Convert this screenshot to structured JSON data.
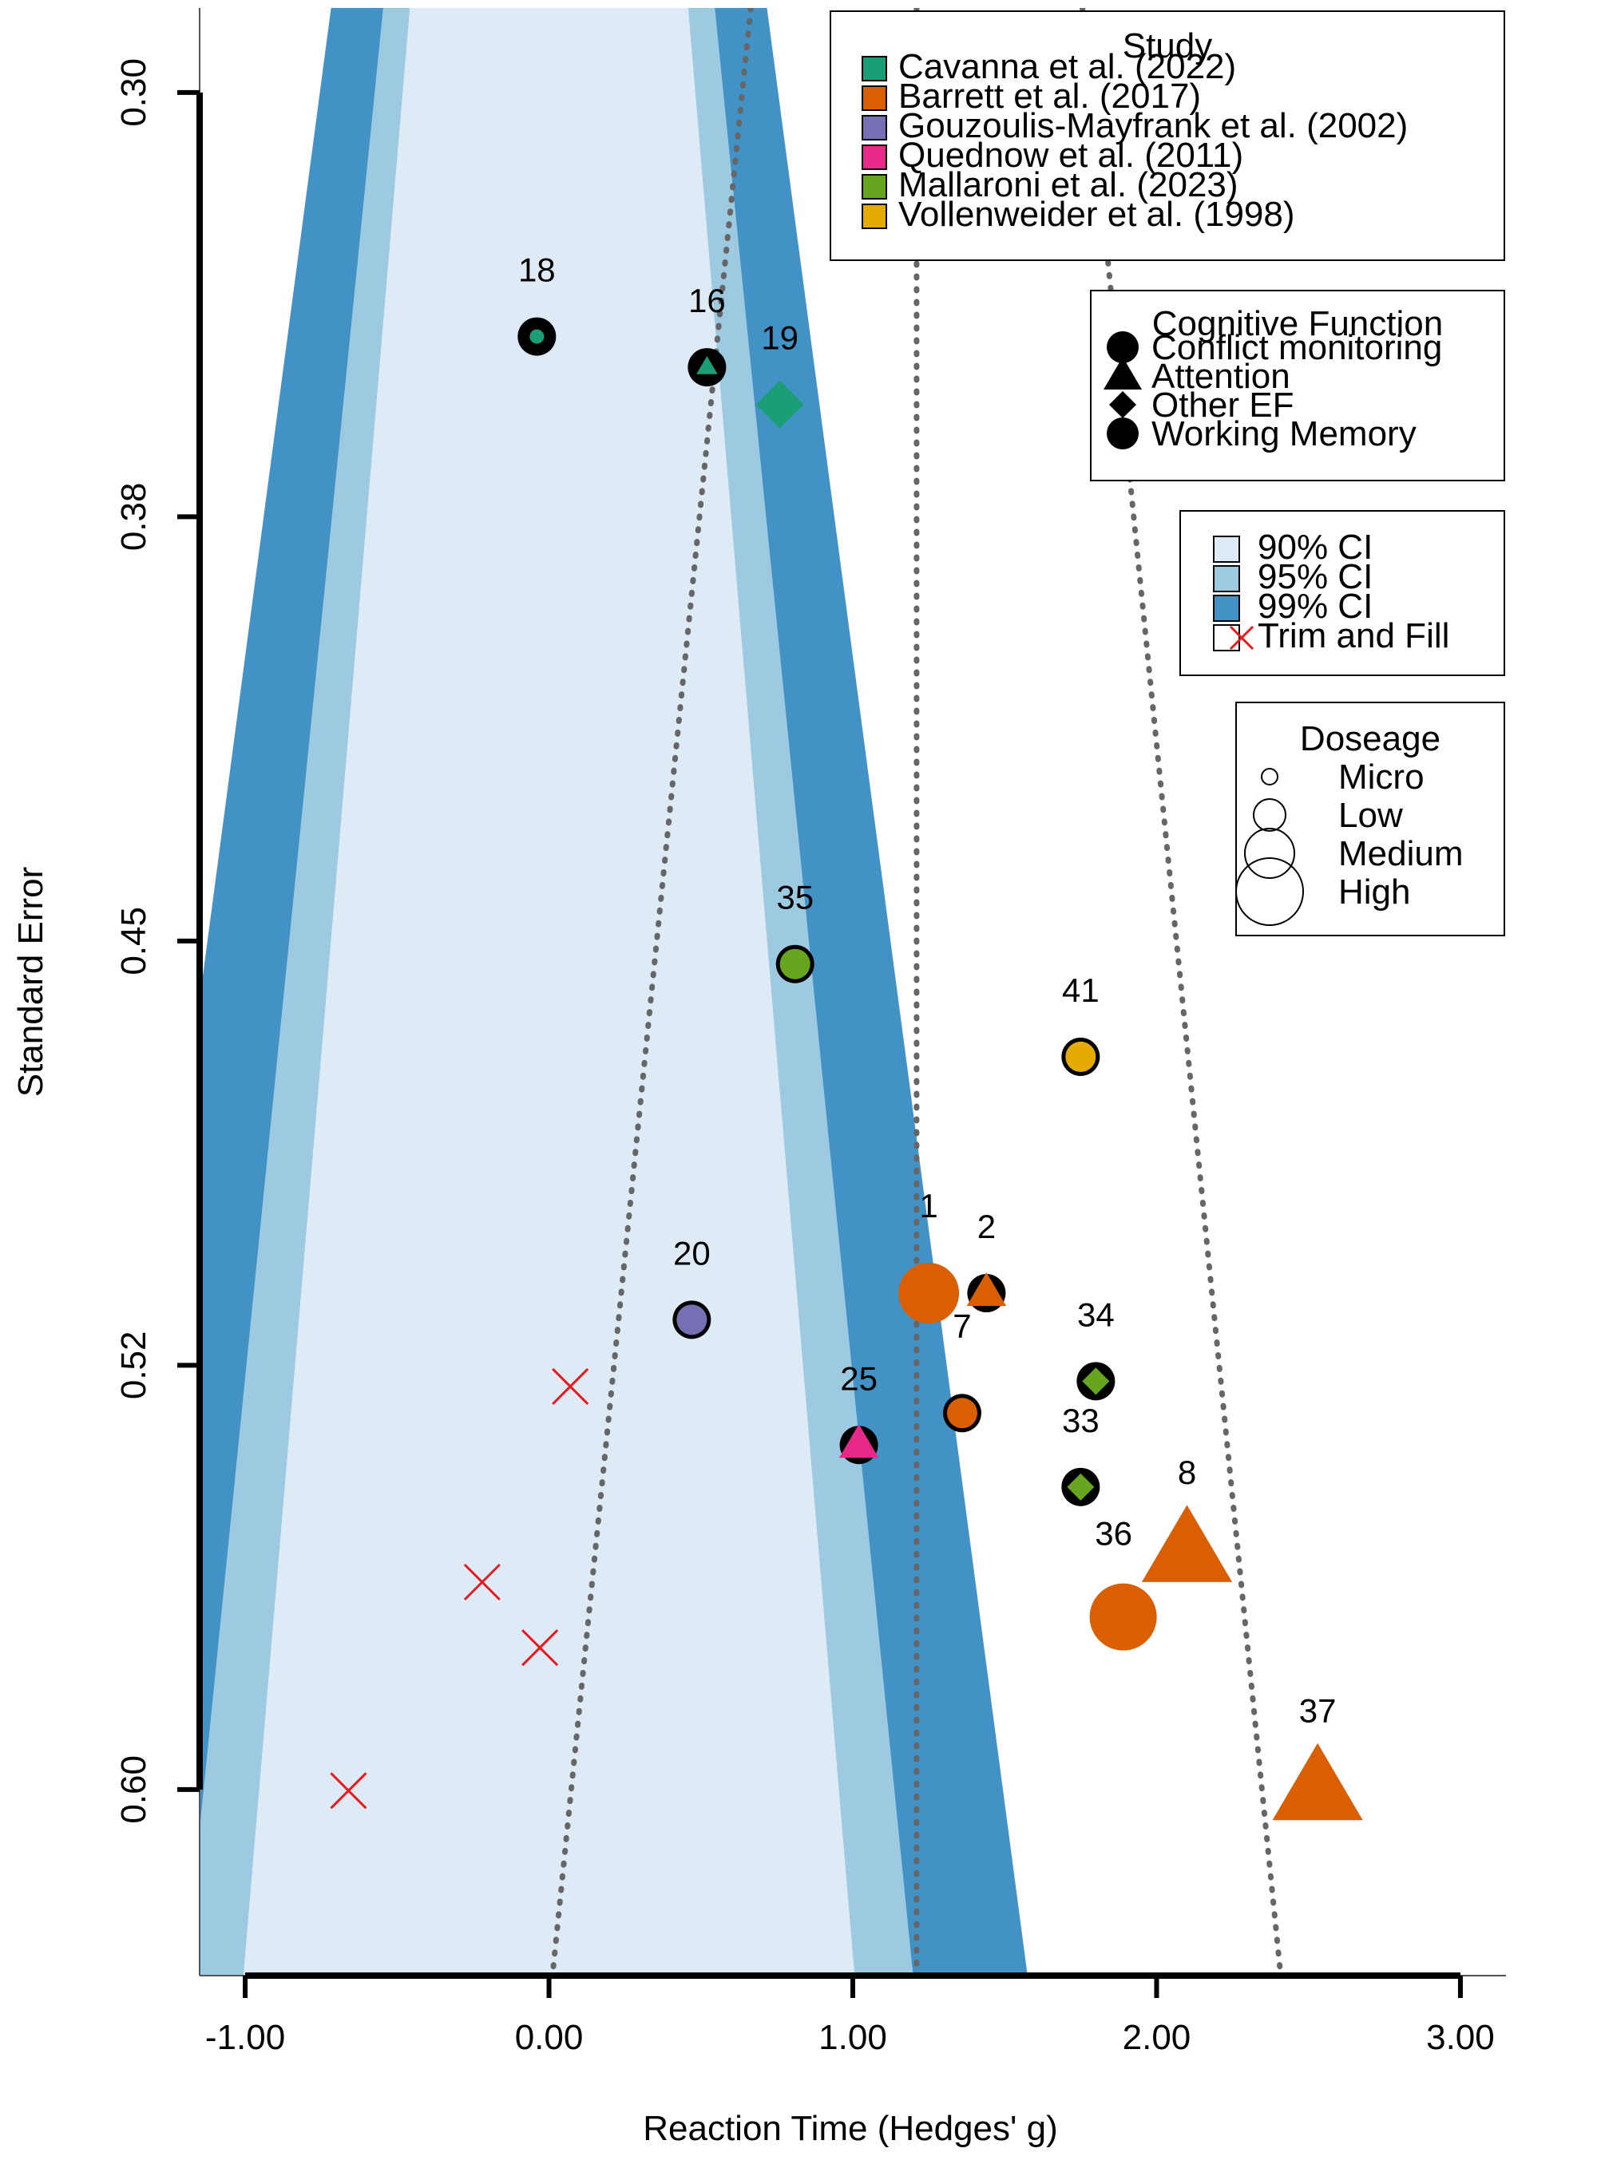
{
  "chart_data": {
    "type": "scatter",
    "subtype": "contour-enhanced funnel plot",
    "xlabel": "Reaction Time (Hedges' g)",
    "ylabel": "Standard Error",
    "xlim": [
      -1.15,
      3.15
    ],
    "ylim": [
      0.6115,
      0.2785
    ],
    "y_inverted": true,
    "x_ticks": [
      "-1.00",
      "0.00",
      "1.00",
      "2.00",
      "3.00"
    ],
    "x_tick_values": [
      -1,
      0,
      1,
      2,
      3
    ],
    "y_ticks": [
      "0.30",
      "0.38",
      "0.45",
      "0.52",
      "0.60"
    ],
    "y_tick_values": [
      0.2928,
      0.3646,
      0.4364,
      0.5082,
      0.58
    ],
    "center_effect": 1.21,
    "contour_bands": [
      {
        "label": "90% CI",
        "z": 1.645,
        "color": "#deebf7"
      },
      {
        "label": "95% CI",
        "z": 1.96,
        "color": "#9ecae1"
      },
      {
        "label": "99% CI",
        "z": 2.576,
        "color": "#4292c6"
      }
    ],
    "funnel_center": 1.21,
    "funnel_lines_se_range": [
      0.2785,
      0.6115
    ],
    "legends": {
      "study": {
        "title": "Study",
        "entries": [
          {
            "name": "Cavanna et al. (2022)",
            "color": "#1b9e77"
          },
          {
            "name": "Barrett et al. (2017)",
            "color": "#d95f02"
          },
          {
            "name": "Gouzoulis-Mayfrank et al. (2002)",
            "color": "#7570b3"
          },
          {
            "name": "Quednow et al. (2011)",
            "color": "#e7298a"
          },
          {
            "name": "Mallaroni et al. (2023)",
            "color": "#66a61e"
          },
          {
            "name": "Vollenweider et al. (1998)",
            "color": "#e6ab02"
          }
        ]
      },
      "cognitive_function": {
        "title": "Cognitive Function",
        "entries": [
          {
            "name": "Conflict monitoring",
            "shape": "circle"
          },
          {
            "name": "Attention",
            "shape": "triangle"
          },
          {
            "name": "Other EF",
            "shape": "diamond"
          },
          {
            "name": "Working Memory",
            "shape": "circle"
          }
        ]
      },
      "ci": {
        "entries": [
          {
            "name": "90% CI",
            "color": "#deebf7"
          },
          {
            "name": "95% CI",
            "color": "#9ecae1"
          },
          {
            "name": "99% CI",
            "color": "#4292c6"
          },
          {
            "name": "Trim and Fill",
            "marker": "x",
            "color": "#e41a1c"
          }
        ]
      },
      "dosage": {
        "title": "Doseage",
        "entries": [
          {
            "name": "Micro",
            "size": 1
          },
          {
            "name": "Low",
            "size": 2
          },
          {
            "name": "Medium",
            "size": 3
          },
          {
            "name": "High",
            "size": 4
          }
        ]
      }
    },
    "points": [
      {
        "label": "18",
        "x": -0.04,
        "y": 0.3341,
        "study": "Cavanna et al. (2022)",
        "shape": "circle",
        "dose": 1,
        "outline": "black"
      },
      {
        "label": "16",
        "x": 0.52,
        "y": 0.3393,
        "study": "Cavanna et al. (2022)",
        "shape": "triangle",
        "dose": 1,
        "outline": "black"
      },
      {
        "label": "19",
        "x": 0.76,
        "y": 0.3456,
        "study": "Cavanna et al. (2022)",
        "shape": "diamond",
        "dose": 2,
        "outline": "none"
      },
      {
        "label": "35",
        "x": 0.81,
        "y": 0.4403,
        "study": "Mallaroni et al. (2023)",
        "shape": "circle",
        "dose": 2,
        "outline": "black"
      },
      {
        "label": "41",
        "x": 1.75,
        "y": 0.456,
        "study": "Vollenweider et al. (1998)",
        "shape": "circle",
        "dose": 2,
        "outline": "black"
      },
      {
        "label": "20",
        "x": 0.47,
        "y": 0.5005,
        "study": "Gouzoulis-Mayfrank et al. (2002)",
        "shape": "circle",
        "dose": 2,
        "outline": "black"
      },
      {
        "label": "1",
        "x": 1.25,
        "y": 0.496,
        "study": "Barrett et al. (2017)",
        "shape": "circle",
        "dose": 3,
        "outline": "none"
      },
      {
        "label": "2",
        "x": 1.44,
        "y": 0.496,
        "study": "Barrett et al. (2017)",
        "shape": "triangle",
        "dose": 2,
        "outline": "black"
      },
      {
        "label": "34",
        "x": 1.8,
        "y": 0.5109,
        "study": "Mallaroni et al. (2023)",
        "shape": "diamond",
        "dose": 2,
        "outline": "black"
      },
      {
        "label": "7",
        "x": 1.36,
        "y": 0.5163,
        "study": "Barrett et al. (2017)",
        "shape": "circle",
        "dose": 2,
        "outline": "black"
      },
      {
        "label": "25",
        "x": 1.02,
        "y": 0.5217,
        "study": "Quednow et al. (2011)",
        "shape": "triangle",
        "dose": 2,
        "outline": "black"
      },
      {
        "label": "33",
        "x": 1.75,
        "y": 0.5288,
        "study": "Mallaroni et al. (2023)",
        "shape": "diamond",
        "dose": 2,
        "outline": "black"
      },
      {
        "label": "8",
        "x": 2.1,
        "y": 0.5399,
        "study": "Barrett et al. (2017)",
        "shape": "triangle",
        "dose": 4,
        "outline": "none"
      },
      {
        "label": "36",
        "x": 1.89,
        "y": 0.5508,
        "study": "Barrett et al. (2017)",
        "shape": "circle",
        "dose": 4,
        "outline": "none"
      },
      {
        "label": "37",
        "x": 2.53,
        "y": 0.5802,
        "study": "Barrett et al. (2017)",
        "shape": "triangle",
        "dose": 4,
        "outline": "none"
      }
    ],
    "trim_and_fill": [
      {
        "x": 0.07,
        "y": 0.5118
      },
      {
        "x": -0.22,
        "y": 0.5449
      },
      {
        "x": -0.03,
        "y": 0.556
      },
      {
        "x": -0.66,
        "y": 0.5802
      }
    ]
  }
}
